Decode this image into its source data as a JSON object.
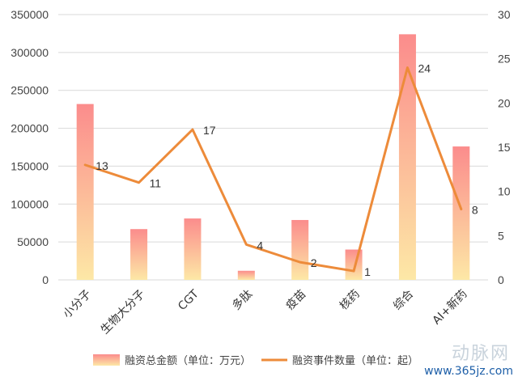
{
  "chart_data": {
    "type": "bar+line",
    "categories": [
      "小分子",
      "生物大分子",
      "CGT",
      "多肽",
      "疫苗",
      "核药",
      "综合",
      "AI+新药"
    ],
    "bar_series": {
      "name": "融资总金额（单位：万元）",
      "values": [
        232000,
        67000,
        81000,
        12000,
        79000,
        40000,
        324000,
        176000
      ]
    },
    "line_series": {
      "name": "融资事件数量（单位：起）",
      "values": [
        13,
        11,
        17,
        4,
        2,
        1,
        24,
        8
      ]
    },
    "y_left": {
      "min": 0,
      "max": 350000,
      "ticks": [
        0,
        50000,
        100000,
        150000,
        200000,
        250000,
        300000,
        350000
      ]
    },
    "y_right": {
      "min": 0,
      "max": 30,
      "ticks": [
        0,
        5,
        10,
        15,
        20,
        25,
        30
      ]
    },
    "grid": true,
    "legend_position": "bottom",
    "colors": {
      "bar_top": "#fb8c8c",
      "bar_bottom": "#fde8a6",
      "line": "#ed8b3a",
      "grid": "#d9d9d9"
    }
  },
  "watermark": {
    "logo_text": "动脉网",
    "url": "www.365jz.com"
  }
}
